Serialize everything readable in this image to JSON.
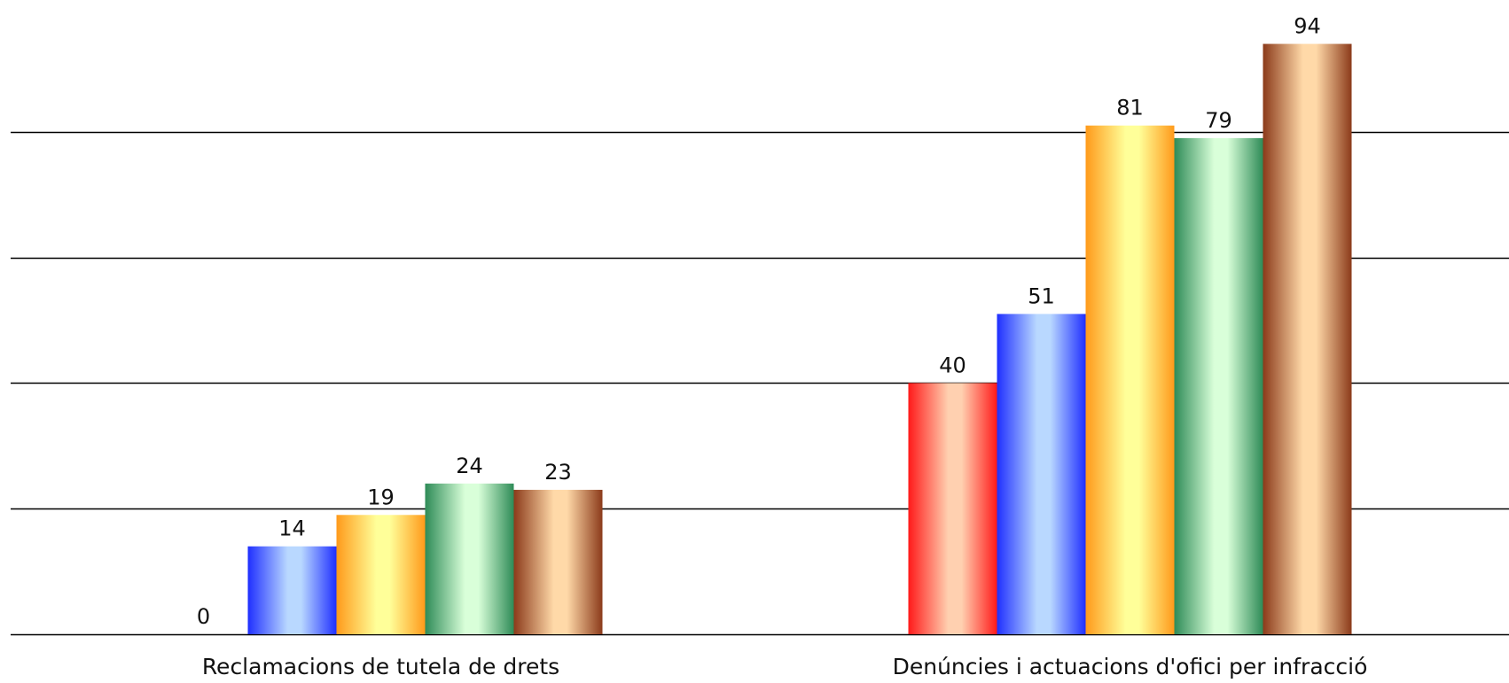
{
  "chart_data": {
    "type": "bar",
    "categories": [
      "Reclamacions de tutela de drets",
      "Denúncies i actuacions d'ofici per infracció"
    ],
    "series": [
      {
        "values": [
          0,
          40
        ],
        "color": "#e8322a",
        "gradient": [
          "#ff1a1a",
          "#ffd0b0"
        ]
      },
      {
        "values": [
          14,
          51
        ],
        "color": "#3f5ff0",
        "gradient": [
          "#1f2fff",
          "#b9d8ff"
        ]
      },
      {
        "values": [
          19,
          81
        ],
        "color": "#ffd060",
        "gradient": [
          "#ff9a1a",
          "#ffff99"
        ]
      },
      {
        "values": [
          24,
          79
        ],
        "color": "#7fd08a",
        "gradient": [
          "#2e8b57",
          "#d9ffd9"
        ]
      },
      {
        "values": [
          23,
          94
        ],
        "color": "#d9986a",
        "gradient": [
          "#8b3a1a",
          "#ffd9a8"
        ]
      }
    ],
    "ylim": [
      0,
      100
    ],
    "gridlines": [
      0,
      20,
      40,
      60,
      80
    ],
    "grid": true,
    "show_y_tick_labels": false,
    "data_labels": true
  }
}
